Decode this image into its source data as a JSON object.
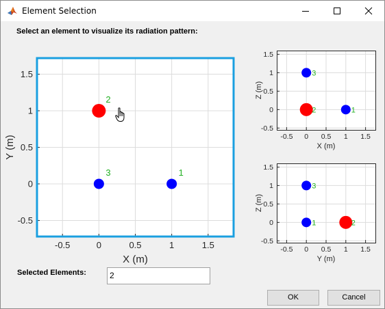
{
  "window": {
    "title": "Element Selection",
    "controls": [
      "minimize-icon",
      "maximize-icon",
      "close-icon"
    ]
  },
  "instruction": "Select an element to visualize its radiation pattern:",
  "selected": {
    "label": "Selected Elements:",
    "value": "2"
  },
  "buttons": {
    "ok": "OK",
    "cancel": "Cancel"
  },
  "colors": {
    "selected_element": "#ff0000",
    "element": "#0000ff",
    "element_label": "#22b022",
    "active_axes_border": "#1a9fe0"
  },
  "chart_data": [
    {
      "type": "scatter",
      "id": "main",
      "xlabel": "X (m)",
      "ylabel": "Y (m)",
      "xlim": [
        -0.85,
        1.85
      ],
      "ylim": [
        -0.72,
        1.72
      ],
      "xticks": [
        "-0.5",
        "0",
        "0.5",
        "1",
        "1.5"
      ],
      "yticks": [
        "-0.5",
        "0",
        "0.5",
        "1",
        "1.5"
      ],
      "grid": true,
      "points": [
        {
          "label": "1",
          "x": 1,
          "y": 0,
          "selected": false
        },
        {
          "label": "2",
          "x": 0,
          "y": 1,
          "selected": true
        },
        {
          "label": "3",
          "x": 0,
          "y": 0,
          "selected": false
        }
      ]
    },
    {
      "type": "scatter",
      "id": "xz",
      "xlabel": "X (m)",
      "ylabel": "Z (m)",
      "xlim": [
        -0.75,
        1.75
      ],
      "ylim": [
        -0.55,
        1.6
      ],
      "xticks": [
        "-0.5",
        "0",
        "0.5",
        "1",
        "1.5"
      ],
      "yticks": [
        "-0.5",
        "0",
        "0.5",
        "1",
        "1.5"
      ],
      "grid": true,
      "points": [
        {
          "label": "1",
          "x": 1,
          "y": 0,
          "selected": false
        },
        {
          "label": "2",
          "x": 0,
          "y": 0,
          "selected": true
        },
        {
          "label": "3",
          "x": 0,
          "y": 1,
          "selected": false
        }
      ]
    },
    {
      "type": "scatter",
      "id": "yz",
      "xlabel": "Y (m)",
      "ylabel": "Z (m)",
      "xlim": [
        -0.75,
        1.75
      ],
      "ylim": [
        -0.55,
        1.6
      ],
      "xticks": [
        "-0.5",
        "0",
        "0.5",
        "1",
        "1.5"
      ],
      "yticks": [
        "-0.5",
        "0",
        "0.5",
        "1",
        "1.5"
      ],
      "grid": true,
      "points": [
        {
          "label": "1",
          "x": 0,
          "y": 0,
          "selected": false
        },
        {
          "label": "2",
          "x": 1,
          "y": 0,
          "selected": true
        },
        {
          "label": "3",
          "x": 0,
          "y": 1,
          "selected": false
        }
      ]
    }
  ]
}
